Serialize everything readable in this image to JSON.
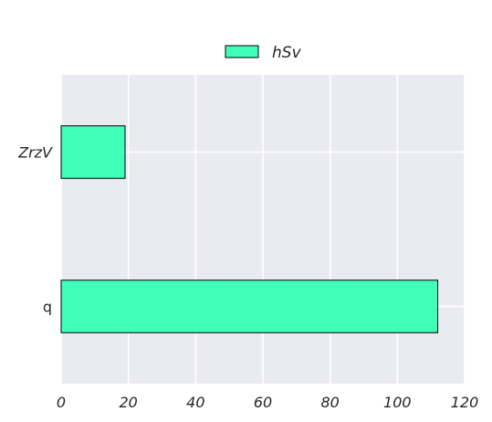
{
  "chart_data": {
    "type": "bar",
    "orientation": "horizontal",
    "categories": [
      "ZrzV",
      "q"
    ],
    "category_italic": [
      true,
      false
    ],
    "series": [
      {
        "name": "hSv",
        "values": [
          19,
          112
        ],
        "color": "#40ffb8"
      }
    ],
    "xlim": [
      0,
      120
    ],
    "xticks": [
      "0",
      "20",
      "40",
      "60",
      "80",
      "100",
      "120"
    ],
    "grid": true,
    "legend_position": "top-center",
    "background_color": "#eaeaf2",
    "grid_color": "#ffffff",
    "edge_color": "#000000"
  }
}
